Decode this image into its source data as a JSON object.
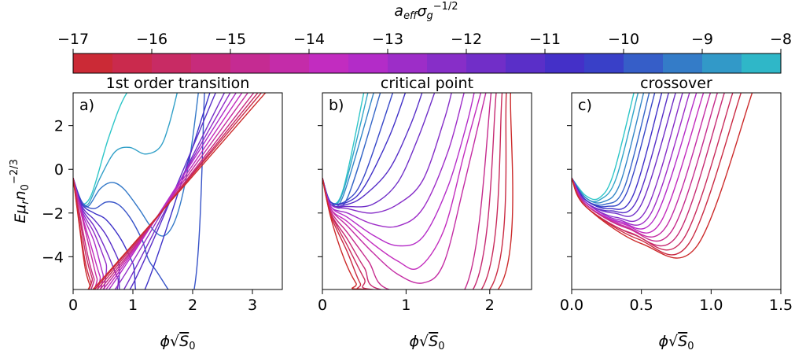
{
  "chart_data": {
    "type": "line",
    "colorbar": {
      "label": "a_eff σ_g^-1/2",
      "range": [
        -17,
        -8
      ],
      "ticks": [
        "−17",
        "−16",
        "−15",
        "−14",
        "−13",
        "−12",
        "−11",
        "−10",
        "−9",
        "−8"
      ],
      "segments": 18,
      "colors": {
        "low": "#cc2a2a",
        "mid": "#c22cc8",
        "high": "#3a30c8",
        "top": "#2ec6c8"
      }
    },
    "shared_ylabel": "Eμ_r n_0^-2/3",
    "ylim": [
      -5.5,
      3.5
    ],
    "yticks": [
      "−4",
      "−2",
      "0",
      "2"
    ],
    "panels": [
      {
        "label": "a)",
        "title": "1st order transition",
        "xlabel": "ϕ√S_0",
        "xlim": [
          0,
          3.5
        ],
        "xticks": [
          "0",
          "1",
          "2",
          "3"
        ],
        "ylabels_shown": true,
        "series": [
          {
            "x": [
              0,
              0.1,
              0.3,
              0.6,
              0.9,
              1.3,
              1.8
            ],
            "y": [
              -0.4,
              -1.5,
              -1.2,
              1.5,
              3.5,
              4.5,
              5
            ]
          },
          {
            "x": [
              0,
              0.1,
              0.25,
              0.45,
              0.7,
              0.95,
              1.2,
              1.45,
              1.6,
              1.75
            ],
            "y": [
              -0.4,
              -1.4,
              -1.6,
              -0.4,
              0.8,
              1.0,
              0.7,
              1.0,
              2.0,
              3.6
            ]
          },
          {
            "x": [
              0,
              0.1,
              0.25,
              0.45,
              0.65,
              0.85,
              1.1,
              1.35,
              1.55,
              1.75,
              1.95,
              2.1
            ],
            "y": [
              -0.4,
              -1.4,
              -1.7,
              -0.9,
              -0.6,
              -0.9,
              -1.8,
              -2.8,
              -3.0,
              -2.0,
              0.5,
              3.6
            ]
          },
          {
            "x": [
              0,
              0.15,
              0.35,
              0.55,
              0.75,
              0.95,
              1.15,
              1.35,
              2.0,
              2.2
            ],
            "y": [
              -0.4,
              -1.5,
              -1.8,
              -1.5,
              -1.6,
              -2.2,
              -3.2,
              -4.5,
              -5.8,
              3.6
            ]
          },
          {
            "x": [
              0,
              0.15,
              0.35,
              0.55,
              0.8,
              1.0,
              1.2,
              2.3
            ],
            "y": [
              -0.4,
              -1.6,
              -2.0,
              -2.3,
              -3.2,
              -4.3,
              -5.5,
              3.6
            ]
          },
          {
            "x": [
              0,
              0.15,
              0.35,
              0.55,
              0.75,
              0.95,
              2.4
            ],
            "y": [
              -0.4,
              -1.7,
              -2.3,
              -3.0,
              -4.1,
              -5.5,
              3.6
            ]
          },
          {
            "x": [
              0,
              0.15,
              0.35,
              0.55,
              0.75,
              0.85,
              2.55
            ],
            "y": [
              -0.4,
              -1.8,
              -2.6,
              -3.7,
              -5.0,
              -5.5,
              3.6
            ]
          },
          {
            "x": [
              0,
              0.15,
              0.35,
              0.55,
              0.7,
              2.65
            ],
            "y": [
              -0.4,
              -1.9,
              -2.9,
              -4.3,
              -5.5,
              3.6
            ]
          },
          {
            "x": [
              0,
              0.15,
              0.35,
              0.5,
              0.6,
              2.75
            ],
            "y": [
              -0.4,
              -2.0,
              -3.3,
              -4.8,
              -5.5,
              3.6
            ]
          },
          {
            "x": [
              0,
              0.15,
              0.3,
              0.45,
              0.55,
              2.85
            ],
            "y": [
              -0.4,
              -2.1,
              -3.5,
              -4.9,
              -5.5,
              3.6
            ]
          },
          {
            "x": [
              0,
              0.15,
              0.3,
              0.4,
              0.5,
              2.95
            ],
            "y": [
              -0.4,
              -2.2,
              -3.9,
              -5.0,
              -5.5,
              3.6
            ]
          },
          {
            "x": [
              0,
              0.12,
              0.25,
              0.35,
              0.45,
              3.05
            ],
            "y": [
              -0.4,
              -2.2,
              -4.0,
              -5.0,
              -5.5,
              3.6
            ]
          },
          {
            "x": [
              0,
              0.12,
              0.22,
              0.32,
              0.4,
              3.12
            ],
            "y": [
              -0.4,
              -2.4,
              -4.0,
              -5.0,
              -5.5,
              3.6
            ]
          },
          {
            "x": [
              0,
              0.1,
              0.2,
              0.3,
              0.36,
              3.18
            ],
            "y": [
              -0.4,
              -2.4,
              -4.2,
              -5.2,
              -5.5,
              3.6
            ]
          },
          {
            "x": [
              0,
              0.1,
              0.2,
              0.28,
              0.33,
              3.25
            ],
            "y": [
              -0.4,
              -2.5,
              -4.5,
              -5.3,
              -5.5,
              3.6
            ]
          }
        ]
      },
      {
        "label": "b)",
        "title": "critical point",
        "xlabel": "ϕ√S_0",
        "xlim": [
          0,
          2.5
        ],
        "xticks": [
          "0",
          "1",
          "2"
        ],
        "ylabels_shown": false,
        "series": [
          {
            "x": [
              0,
              0.1,
              0.25,
              0.5
            ],
            "y": [
              -0.4,
              -1.5,
              -0.9,
              3.6
            ]
          },
          {
            "x": [
              0,
              0.1,
              0.25,
              0.55
            ],
            "y": [
              -0.4,
              -1.5,
              -1.0,
              3.6
            ]
          },
          {
            "x": [
              0,
              0.1,
              0.25,
              0.62
            ],
            "y": [
              -0.4,
              -1.5,
              -1.2,
              3.6
            ]
          },
          {
            "x": [
              0,
              0.1,
              0.3,
              0.7
            ],
            "y": [
              -0.4,
              -1.5,
              -1.3,
              3.6
            ]
          },
          {
            "x": [
              0,
              0.1,
              0.3,
              0.5,
              0.85
            ],
            "y": [
              -0.4,
              -1.5,
              -1.4,
              -0.3,
              3.6
            ]
          },
          {
            "x": [
              0,
              0.1,
              0.3,
              0.5,
              0.8,
              1.0
            ],
            "y": [
              -0.4,
              -1.5,
              -1.5,
              -0.8,
              1.5,
              3.6
            ]
          },
          {
            "x": [
              0,
              0.1,
              0.3,
              0.5,
              0.8,
              1.05,
              1.2
            ],
            "y": [
              -0.4,
              -1.6,
              -1.6,
              -1.2,
              0.0,
              2.0,
              3.6
            ]
          },
          {
            "x": [
              0,
              0.1,
              0.3,
              0.6,
              0.9,
              1.15,
              1.35
            ],
            "y": [
              -0.4,
              -1.6,
              -1.7,
              -1.6,
              -0.6,
              1.5,
              3.6
            ]
          },
          {
            "x": [
              0,
              0.1,
              0.3,
              0.6,
              0.9,
              1.2,
              1.45,
              1.55
            ],
            "y": [
              -0.4,
              -1.6,
              -1.8,
              -2.0,
              -1.6,
              -0.5,
              2.2,
              3.6
            ]
          },
          {
            "x": [
              0,
              0.1,
              0.3,
              0.6,
              0.9,
              1.2,
              1.5,
              1.7
            ],
            "y": [
              -0.4,
              -1.7,
              -2.0,
              -2.5,
              -2.6,
              -1.8,
              0.8,
              3.6
            ]
          },
          {
            "x": [
              0,
              0.1,
              0.3,
              0.6,
              0.9,
              1.2,
              1.5,
              1.72,
              1.82
            ],
            "y": [
              -0.4,
              -1.7,
              -2.2,
              -3.0,
              -3.5,
              -3.1,
              -0.8,
              2.0,
              3.6
            ]
          },
          {
            "x": [
              0,
              0.1,
              0.3,
              0.6,
              0.9,
              1.15,
              1.45,
              1.7,
              1.9
            ],
            "y": [
              -0.4,
              -1.8,
              -2.4,
              -3.4,
              -4.2,
              -4.5,
              -2.8,
              0.8,
              3.6
            ]
          },
          {
            "x": [
              0,
              0.1,
              0.3,
              0.6,
              0.9,
              1.2,
              1.45,
              1.7,
              1.96
            ],
            "y": [
              -0.4,
              -1.8,
              -2.6,
              -3.8,
              -4.8,
              -5.2,
              -4.3,
              -0.6,
              3.6
            ]
          },
          {
            "x": [
              0,
              0.1,
              0.3,
              0.55,
              0.8,
              1.7,
              2.02
            ],
            "y": [
              -0.4,
              -1.9,
              -2.9,
              -4.2,
              -5.5,
              -5.5,
              3.6
            ]
          },
          {
            "x": [
              0,
              0.1,
              0.3,
              0.5,
              0.7,
              1.8,
              2.08
            ],
            "y": [
              -0.4,
              -2.0,
              -3.2,
              -4.5,
              -5.5,
              -5.5,
              3.6
            ]
          },
          {
            "x": [
              0,
              0.1,
              0.3,
              0.5,
              0.6,
              1.9,
              2.15
            ],
            "y": [
              -0.4,
              -2.0,
              -3.5,
              -5.0,
              -5.5,
              -5.5,
              3.6
            ]
          },
          {
            "x": [
              0,
              0.1,
              0.3,
              0.45,
              0.55,
              2.0,
              2.2
            ],
            "y": [
              -0.4,
              -2.1,
              -3.8,
              -5.2,
              -5.5,
              -5.5,
              3.6
            ]
          },
          {
            "x": [
              0,
              0.1,
              0.25,
              0.4,
              0.5,
              2.1,
              2.25
            ],
            "y": [
              -0.4,
              -2.2,
              -4.0,
              -5.2,
              -5.5,
              -5.5,
              3.6
            ]
          }
        ]
      },
      {
        "label": "c)",
        "title": "crossover",
        "xlabel": "ϕ√S_0",
        "xlim": [
          0,
          1.5
        ],
        "xticks": [
          "0.0",
          "0.5",
          "1.0",
          "1.5"
        ],
        "ylabels_shown": false,
        "series": [
          {
            "x": [
              0,
              0.1,
              0.2,
              0.3,
              0.45
            ],
            "y": [
              -0.4,
              -1.2,
              -1.3,
              -0.2,
              3.6
            ]
          },
          {
            "x": [
              0,
              0.1,
              0.2,
              0.32,
              0.48
            ],
            "y": [
              -0.4,
              -1.3,
              -1.4,
              -0.4,
              3.6
            ]
          },
          {
            "x": [
              0,
              0.1,
              0.22,
              0.35,
              0.52
            ],
            "y": [
              -0.4,
              -1.3,
              -1.5,
              -0.6,
              3.6
            ]
          },
          {
            "x": [
              0,
              0.1,
              0.24,
              0.38,
              0.56
            ],
            "y": [
              -0.4,
              -1.4,
              -1.6,
              -0.8,
              3.6
            ]
          },
          {
            "x": [
              0,
              0.1,
              0.25,
              0.4,
              0.6
            ],
            "y": [
              -0.4,
              -1.4,
              -1.7,
              -1.0,
              3.6
            ]
          },
          {
            "x": [
              0,
              0.1,
              0.27,
              0.44,
              0.65
            ],
            "y": [
              -0.4,
              -1.4,
              -1.8,
              -1.2,
              3.6
            ]
          },
          {
            "x": [
              0,
              0.1,
              0.28,
              0.47,
              0.7
            ],
            "y": [
              -0.4,
              -1.5,
              -1.9,
              -1.4,
              3.6
            ]
          },
          {
            "x": [
              0,
              0.1,
              0.3,
              0.5,
              0.75
            ],
            "y": [
              -0.4,
              -1.5,
              -2.0,
              -1.6,
              3.6
            ]
          },
          {
            "x": [
              0,
              0.1,
              0.32,
              0.54,
              0.8
            ],
            "y": [
              -0.4,
              -1.5,
              -2.2,
              -1.8,
              3.6
            ]
          },
          {
            "x": [
              0,
              0.1,
              0.33,
              0.57,
              0.85
            ],
            "y": [
              -0.4,
              -1.5,
              -2.3,
              -2.0,
              3.6
            ]
          },
          {
            "x": [
              0,
              0.1,
              0.35,
              0.6,
              0.9
            ],
            "y": [
              -0.4,
              -1.6,
              -2.4,
              -2.2,
              3.6
            ]
          },
          {
            "x": [
              0,
              0.1,
              0.37,
              0.64,
              0.95
            ],
            "y": [
              -0.4,
              -1.6,
              -2.5,
              -2.4,
              3.6
            ]
          },
          {
            "x": [
              0,
              0.1,
              0.38,
              0.68,
              1.0
            ],
            "y": [
              -0.4,
              -1.6,
              -2.6,
              -2.6,
              3.6
            ]
          },
          {
            "x": [
              0,
              0.1,
              0.4,
              0.72,
              1.05
            ],
            "y": [
              -0.4,
              -1.6,
              -2.7,
              -2.8,
              3.6
            ]
          },
          {
            "x": [
              0,
              0.1,
              0.42,
              0.76,
              1.1
            ],
            "y": [
              -0.4,
              -1.7,
              -2.9,
              -3.0,
              3.6
            ]
          },
          {
            "x": [
              0,
              0.1,
              0.45,
              0.8,
              1.16
            ],
            "y": [
              -0.4,
              -1.7,
              -3.0,
              -3.2,
              3.6
            ]
          },
          {
            "x": [
              0,
              0.1,
              0.48,
              0.84,
              1.22
            ],
            "y": [
              -0.4,
              -1.7,
              -3.2,
              -3.4,
              3.6
            ]
          },
          {
            "x": [
              0,
              0.1,
              0.5,
              0.9,
              1.3
            ],
            "y": [
              -0.4,
              -1.7,
              -3.4,
              -3.5,
              3.6
            ]
          }
        ]
      }
    ]
  }
}
